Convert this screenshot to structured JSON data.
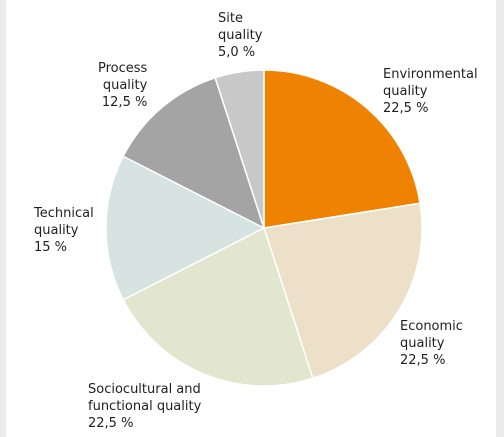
{
  "chart_data": {
    "type": "pie",
    "title": "",
    "start": "12 o'clock",
    "direction": "clockwise",
    "slices": [
      {
        "label": [
          "Environmental",
          "quality"
        ],
        "value_text": "22,5 %",
        "value": 22.5,
        "color": "#ef8200"
      },
      {
        "label": [
          "Economic",
          "quality"
        ],
        "value_text": "22,5 %",
        "value": 22.5,
        "color": "#ece0c8"
      },
      {
        "label": [
          "Sociocultural and",
          "functional quality"
        ],
        "value_text": "22,5 %",
        "value": 22.5,
        "color": "#e2e6cf"
      },
      {
        "label": [
          "Technical",
          "quality"
        ],
        "value_text": "15 %",
        "value": 15,
        "color": "#d6e3e0"
      },
      {
        "label": [
          "Process",
          "quality"
        ],
        "value_text": "12,5 %",
        "value": 12.5,
        "color": "#a4a4a4"
      },
      {
        "label": [
          "Site",
          "quality"
        ],
        "value_text": "5,0 %",
        "value": 5,
        "color": "#c8c8c8"
      }
    ]
  }
}
